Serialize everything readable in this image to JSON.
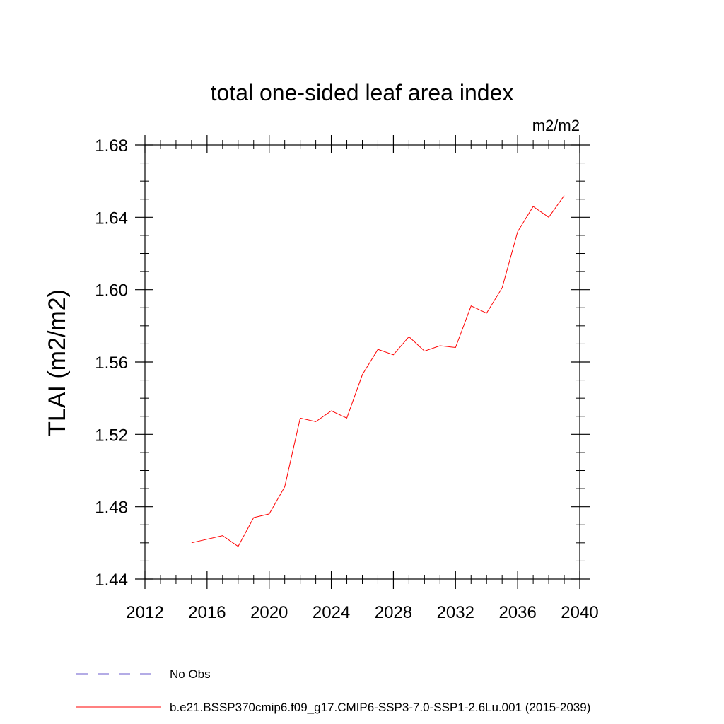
{
  "chart_data": {
    "type": "line",
    "title": "total one-sided leaf area index",
    "units_label": "m2/m2",
    "ylabel": "TLAI  (m2/m2)",
    "xlabel": "",
    "xlim": [
      2012,
      2040
    ],
    "ylim": [
      1.44,
      1.68
    ],
    "xticks": [
      2012,
      2016,
      2020,
      2024,
      2028,
      2032,
      2036,
      2040
    ],
    "yticks": [
      1.44,
      1.48,
      1.52,
      1.56,
      1.6,
      1.64,
      1.68
    ],
    "ytick_labels": [
      "1.44",
      "1.48",
      "1.52",
      "1.56",
      "1.60",
      "1.64",
      "1.68"
    ],
    "grid": false,
    "legend_position": "bottom",
    "series": [
      {
        "name": "b.e21.BSSP370cmip6.f09_g17.CMIP6-SSP3-7.0-SSP1-2.6Lu.001 (2015-2039)",
        "color": "#ff0000",
        "style": "solid",
        "x": [
          2015,
          2016,
          2017,
          2018,
          2019,
          2020,
          2021,
          2022,
          2023,
          2024,
          2025,
          2026,
          2027,
          2028,
          2029,
          2030,
          2031,
          2032,
          2033,
          2034,
          2035,
          2036,
          2037,
          2038,
          2039
        ],
        "y": [
          1.46,
          1.462,
          1.464,
          1.458,
          1.474,
          1.476,
          1.491,
          1.529,
          1.527,
          1.533,
          1.529,
          1.553,
          1.567,
          1.564,
          1.574,
          1.566,
          1.569,
          1.568,
          1.591,
          1.587,
          1.601,
          1.632,
          1.646,
          1.64,
          1.652
        ]
      }
    ],
    "legend": [
      {
        "label": "No Obs",
        "color": "#6a5acd",
        "style": "dashed"
      },
      {
        "label": "b.e21.BSSP370cmip6.f09_g17.CMIP6-SSP3-7.0-SSP1-2.6Lu.001 (2015-2039)",
        "color": "#ff0000",
        "style": "solid"
      }
    ]
  }
}
